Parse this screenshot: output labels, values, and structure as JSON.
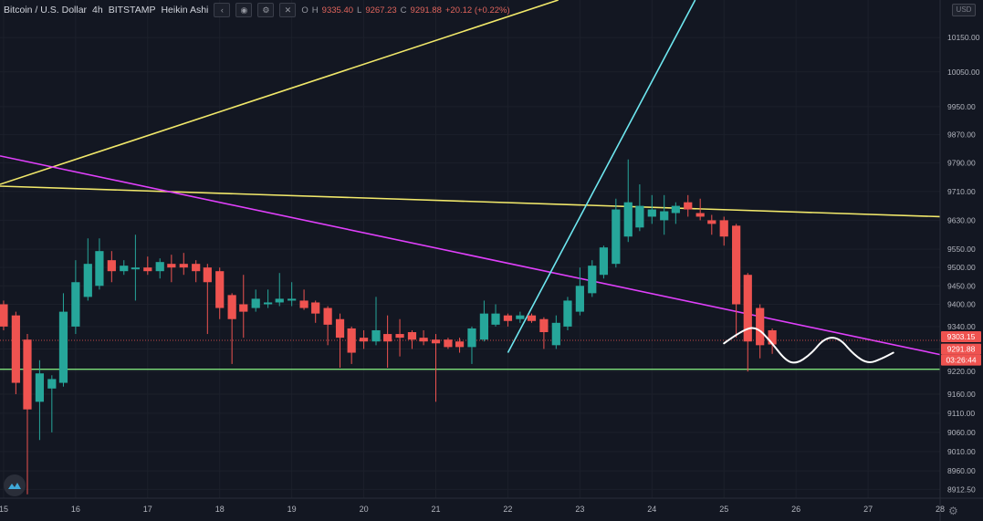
{
  "header": {
    "symbol": "Bitcoin / U.S. Dollar",
    "interval": "4h",
    "exchange": "BITSTAMP",
    "chart_style": "Heikin Ashi",
    "ohlc": {
      "o_label": "O",
      "h_label": "H",
      "h_value": "9335.40",
      "l_label": "L",
      "l_value": "9267.23",
      "c_label": "C",
      "c_value": "9291.88",
      "change": "+20.12 (+0.22%)"
    },
    "currency_badge": "USD"
  },
  "icons": {
    "settings": "gear-icon",
    "visibility": "eye-icon",
    "collapse": "chevron-icon",
    "close": "close-icon",
    "logo": "tradingview-logo-icon"
  },
  "colors": {
    "background": "#131722",
    "up": "#26a69a",
    "down": "#ef5350",
    "grid": "#1c202b",
    "axis_text": "#b2b5be",
    "yellow_trend": "#f1e86a",
    "magenta_trend": "#e040fb",
    "cyan_trend": "#6ee7f0",
    "green_support": "#7ee07a",
    "current_price_tag": "#ef5350",
    "countdown_tag": "#ef5350",
    "last_price_tag": "#ef5350"
  },
  "price_tags": {
    "upper": "9303.15",
    "last": "9291.88",
    "countdown": "03:26:44"
  },
  "chart_data": {
    "type": "candlestick",
    "title": "",
    "xlabel": "",
    "ylabel": "",
    "chart_style": "Heikin Ashi",
    "y_scale": "log",
    "ylim": [
      8890,
      10260
    ],
    "xlim": [
      14.95,
      28.0
    ],
    "x_tick_labels": [
      "15",
      "16",
      "17",
      "18",
      "19",
      "20",
      "21",
      "22",
      "23",
      "24",
      "25",
      "26",
      "27",
      "28"
    ],
    "x_tick_values": [
      15,
      16,
      17,
      18,
      19,
      20,
      21,
      22,
      23,
      24,
      25,
      26,
      27,
      28
    ],
    "y_tick_labels": [
      "8912.50",
      "8960.00",
      "9010.00",
      "9060.00",
      "9110.00",
      "9160.00",
      "9220.00",
      "9280.00",
      "9340.00",
      "9400.00",
      "9450.00",
      "9500.00",
      "9550.00",
      "9630.00",
      "9710.00",
      "9790.00",
      "9870.00",
      "9950.00",
      "10050.00",
      "10150.00"
    ],
    "y_tick_values": [
      8912.5,
      8960,
      9010,
      9060,
      9110,
      9160,
      9220,
      9280,
      9340,
      9400,
      9450,
      9500,
      9550,
      9630,
      9710,
      9790,
      9870,
      9950,
      10050,
      10150
    ],
    "candle_period_days": 0.1667,
    "candles": [
      {
        "t": 15.0,
        "o": 9400,
        "h": 9410,
        "l": 9330,
        "c": 9340
      },
      {
        "t": 15.17,
        "o": 9370,
        "h": 9380,
        "l": 9160,
        "c": 9190
      },
      {
        "t": 15.33,
        "o": 9305,
        "h": 9320,
        "l": 8900,
        "c": 9120
      },
      {
        "t": 15.5,
        "o": 9140,
        "h": 9250,
        "l": 9040,
        "c": 9215
      },
      {
        "t": 15.67,
        "o": 9175,
        "h": 9210,
        "l": 9060,
        "c": 9200
      },
      {
        "t": 15.83,
        "o": 9190,
        "h": 9430,
        "l": 9180,
        "c": 9380
      },
      {
        "t": 16.0,
        "o": 9340,
        "h": 9520,
        "l": 9320,
        "c": 9460
      },
      {
        "t": 16.17,
        "o": 9420,
        "h": 9580,
        "l": 9410,
        "c": 9510
      },
      {
        "t": 16.33,
        "o": 9450,
        "h": 9580,
        "l": 9440,
        "c": 9545
      },
      {
        "t": 16.5,
        "o": 9520,
        "h": 9545,
        "l": 9460,
        "c": 9490
      },
      {
        "t": 16.67,
        "o": 9490,
        "h": 9520,
        "l": 9480,
        "c": 9505
      },
      {
        "t": 16.83,
        "o": 9495,
        "h": 9590,
        "l": 9410,
        "c": 9500
      },
      {
        "t": 17.0,
        "o": 9500,
        "h": 9530,
        "l": 9480,
        "c": 9490
      },
      {
        "t": 17.17,
        "o": 9490,
        "h": 9525,
        "l": 9470,
        "c": 9515
      },
      {
        "t": 17.33,
        "o": 9510,
        "h": 9535,
        "l": 9460,
        "c": 9500
      },
      {
        "t": 17.5,
        "o": 9510,
        "h": 9540,
        "l": 9480,
        "c": 9500
      },
      {
        "t": 17.67,
        "o": 9510,
        "h": 9520,
        "l": 9460,
        "c": 9490
      },
      {
        "t": 17.83,
        "o": 9500,
        "h": 9510,
        "l": 9320,
        "c": 9460
      },
      {
        "t": 18.0,
        "o": 9490,
        "h": 9500,
        "l": 9360,
        "c": 9390
      },
      {
        "t": 18.17,
        "o": 9425,
        "h": 9430,
        "l": 9240,
        "c": 9360
      },
      {
        "t": 18.33,
        "o": 9400,
        "h": 9480,
        "l": 9310,
        "c": 9380
      },
      {
        "t": 18.5,
        "o": 9390,
        "h": 9440,
        "l": 9380,
        "c": 9415
      },
      {
        "t": 18.67,
        "o": 9400,
        "h": 9440,
        "l": 9390,
        "c": 9405
      },
      {
        "t": 18.83,
        "o": 9405,
        "h": 9485,
        "l": 9395,
        "c": 9415
      },
      {
        "t": 19.0,
        "o": 9410,
        "h": 9460,
        "l": 9395,
        "c": 9415
      },
      {
        "t": 19.17,
        "o": 9410,
        "h": 9440,
        "l": 9385,
        "c": 9390
      },
      {
        "t": 19.33,
        "o": 9405,
        "h": 9410,
        "l": 9350,
        "c": 9375
      },
      {
        "t": 19.5,
        "o": 9390,
        "h": 9395,
        "l": 9290,
        "c": 9345
      },
      {
        "t": 19.67,
        "o": 9360,
        "h": 9375,
        "l": 9230,
        "c": 9310
      },
      {
        "t": 19.83,
        "o": 9335,
        "h": 9340,
        "l": 9240,
        "c": 9270
      },
      {
        "t": 20.0,
        "o": 9310,
        "h": 9330,
        "l": 9280,
        "c": 9300
      },
      {
        "t": 20.17,
        "o": 9300,
        "h": 9420,
        "l": 9290,
        "c": 9330
      },
      {
        "t": 20.33,
        "o": 9320,
        "h": 9370,
        "l": 9230,
        "c": 9300
      },
      {
        "t": 20.5,
        "o": 9320,
        "h": 9360,
        "l": 9260,
        "c": 9310
      },
      {
        "t": 20.67,
        "o": 9325,
        "h": 9330,
        "l": 9280,
        "c": 9305
      },
      {
        "t": 20.83,
        "o": 9310,
        "h": 9330,
        "l": 9290,
        "c": 9300
      },
      {
        "t": 21.0,
        "o": 9305,
        "h": 9320,
        "l": 9140,
        "c": 9295
      },
      {
        "t": 21.17,
        "o": 9305,
        "h": 9310,
        "l": 9280,
        "c": 9285
      },
      {
        "t": 21.33,
        "o": 9300,
        "h": 9310,
        "l": 9270,
        "c": 9285
      },
      {
        "t": 21.5,
        "o": 9285,
        "h": 9340,
        "l": 9240,
        "c": 9335
      },
      {
        "t": 21.67,
        "o": 9305,
        "h": 9410,
        "l": 9300,
        "c": 9375
      },
      {
        "t": 21.83,
        "o": 9345,
        "h": 9400,
        "l": 9340,
        "c": 9375
      },
      {
        "t": 22.0,
        "o": 9370,
        "h": 9375,
        "l": 9340,
        "c": 9355
      },
      {
        "t": 22.17,
        "o": 9360,
        "h": 9380,
        "l": 9350,
        "c": 9370
      },
      {
        "t": 22.33,
        "o": 9370,
        "h": 9375,
        "l": 9350,
        "c": 9355
      },
      {
        "t": 22.5,
        "o": 9360,
        "h": 9365,
        "l": 9280,
        "c": 9325
      },
      {
        "t": 22.67,
        "o": 9290,
        "h": 9370,
        "l": 9280,
        "c": 9350
      },
      {
        "t": 22.83,
        "o": 9340,
        "h": 9420,
        "l": 9330,
        "c": 9410
      },
      {
        "t": 23.0,
        "o": 9380,
        "h": 9500,
        "l": 9370,
        "c": 9450
      },
      {
        "t": 23.17,
        "o": 9430,
        "h": 9520,
        "l": 9420,
        "c": 9505
      },
      {
        "t": 23.33,
        "o": 9480,
        "h": 9560,
        "l": 9470,
        "c": 9555
      },
      {
        "t": 23.5,
        "o": 9510,
        "h": 9690,
        "l": 9500,
        "c": 9660
      },
      {
        "t": 23.67,
        "o": 9585,
        "h": 9800,
        "l": 9570,
        "c": 9680
      },
      {
        "t": 23.83,
        "o": 9610,
        "h": 9730,
        "l": 9600,
        "c": 9670
      },
      {
        "t": 24.0,
        "o": 9640,
        "h": 9700,
        "l": 9620,
        "c": 9660
      },
      {
        "t": 24.17,
        "o": 9630,
        "h": 9700,
        "l": 9590,
        "c": 9655
      },
      {
        "t": 24.33,
        "o": 9650,
        "h": 9680,
        "l": 9620,
        "c": 9670
      },
      {
        "t": 24.5,
        "o": 9680,
        "h": 9700,
        "l": 9640,
        "c": 9660
      },
      {
        "t": 24.67,
        "o": 9650,
        "h": 9690,
        "l": 9630,
        "c": 9640
      },
      {
        "t": 24.83,
        "o": 9630,
        "h": 9645,
        "l": 9590,
        "c": 9620
      },
      {
        "t": 25.0,
        "o": 9630,
        "h": 9640,
        "l": 9560,
        "c": 9585
      },
      {
        "t": 25.17,
        "o": 9615,
        "h": 9620,
        "l": 9310,
        "c": 9400
      },
      {
        "t": 25.33,
        "o": 9480,
        "h": 9485,
        "l": 9220,
        "c": 9300
      },
      {
        "t": 25.5,
        "o": 9390,
        "h": 9400,
        "l": 9255,
        "c": 9290
      },
      {
        "t": 25.67,
        "o": 9330,
        "h": 9335,
        "l": 9267,
        "c": 9292
      }
    ],
    "drawings": [
      {
        "type": "trendline",
        "color_key": "yellow_trend",
        "label": "upper yellow",
        "points": [
          [
            14.95,
            9730
          ],
          [
            22.7,
            10260
          ]
        ]
      },
      {
        "type": "trendline",
        "color_key": "yellow_trend",
        "label": "yellow resistance",
        "points": [
          [
            14.95,
            9725
          ],
          [
            28.0,
            9640
          ]
        ]
      },
      {
        "type": "trendline",
        "color_key": "magenta_trend",
        "label": "magenta descending",
        "points": [
          [
            14.95,
            9810
          ],
          [
            28.0,
            9265
          ]
        ]
      },
      {
        "type": "trendline",
        "color_key": "cyan_trend",
        "label": "cyan ascending",
        "points": [
          [
            22.0,
            9270
          ],
          [
            24.6,
            10260
          ]
        ]
      },
      {
        "type": "horizontal",
        "color_key": "green_support",
        "label": "green support",
        "price": 9226
      },
      {
        "type": "freehand",
        "color": "#ffffff",
        "label": "hand-drawn projection",
        "points": [
          [
            25.0,
            9295
          ],
          [
            25.25,
            9330
          ],
          [
            25.45,
            9340
          ],
          [
            25.65,
            9300
          ],
          [
            25.85,
            9250
          ],
          [
            26.0,
            9240
          ],
          [
            26.2,
            9265
          ],
          [
            26.4,
            9310
          ],
          [
            26.6,
            9310
          ],
          [
            26.8,
            9265
          ],
          [
            27.0,
            9240
          ],
          [
            27.2,
            9255
          ],
          [
            27.35,
            9270
          ]
        ]
      }
    ]
  }
}
